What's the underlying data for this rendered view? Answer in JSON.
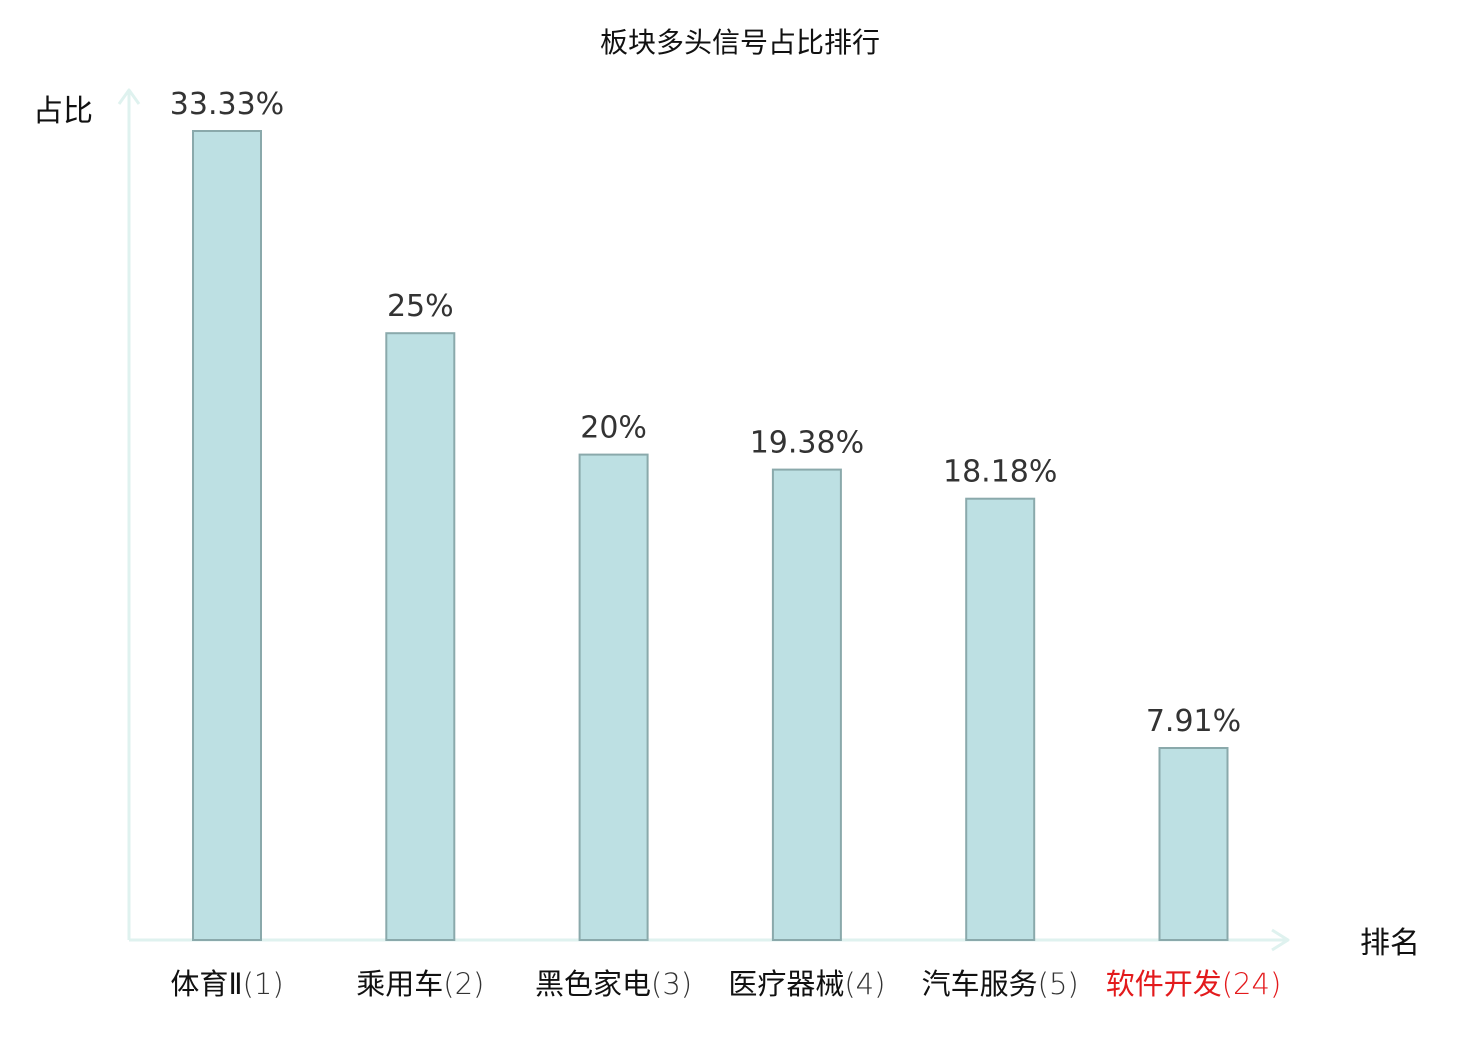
{
  "chart_data": {
    "type": "bar",
    "title": "板块多头信号占比排行",
    "ylabel": "占比",
    "xlabel": "排名",
    "ylim": [
      0,
      33.33
    ],
    "grid": false,
    "categories": [
      {
        "name": "体育Ⅱ",
        "rank": "(1)",
        "highlight": false
      },
      {
        "name": "乘用车",
        "rank": "(2)",
        "highlight": false
      },
      {
        "name": "黑色家电",
        "rank": "(3)",
        "highlight": false
      },
      {
        "name": "医疗器械",
        "rank": "(4)",
        "highlight": false
      },
      {
        "name": "汽车服务",
        "rank": "(5)",
        "highlight": false
      },
      {
        "name": "软件开发",
        "rank": "(24)",
        "highlight": true
      }
    ],
    "values": [
      33.33,
      25,
      20,
      19.38,
      18.18,
      7.91
    ],
    "value_labels": [
      "33.33%",
      "25%",
      "20%",
      "19.38%",
      "18.18%",
      "7.91%"
    ]
  },
  "colors": {
    "bar_fill": "#bde0e3",
    "bar_stroke": "#8aa9ab",
    "axis": "#dff2ef",
    "text": "#333333",
    "category_text": "#111111",
    "highlight": "#e31a1c"
  }
}
